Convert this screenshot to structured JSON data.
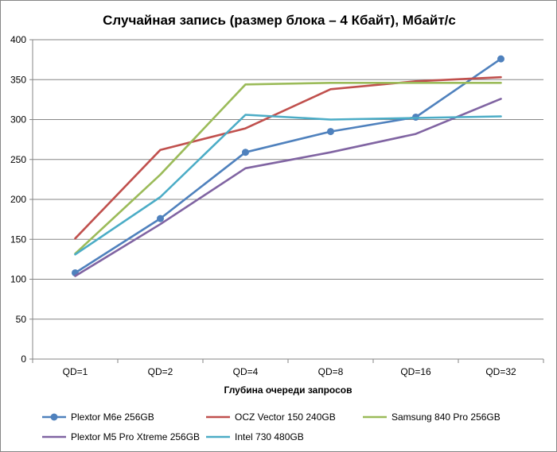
{
  "chart_data": {
    "type": "line",
    "title": "Случайная запись (размер блока – 4 Кбайт), Мбайт/с",
    "xlabel": "Глубина очереди запросов",
    "ylabel": "",
    "categories": [
      "QD=1",
      "QD=2",
      "QD=4",
      "QD=8",
      "QD=16",
      "QD=32"
    ],
    "ylim": [
      0,
      400
    ],
    "yticks": [
      0,
      50,
      100,
      150,
      200,
      250,
      300,
      350,
      400
    ],
    "grid": true,
    "legend_position": "bottom",
    "series": [
      {
        "name": "Plextor M6e 256GB",
        "color": "#4F81BD",
        "markers": true,
        "values": [
          108,
          176,
          259,
          285,
          303,
          376
        ]
      },
      {
        "name": "OCZ Vector 150 240GB",
        "color": "#C0504D",
        "markers": false,
        "values": [
          151,
          262,
          289,
          338,
          348,
          353
        ]
      },
      {
        "name": "Samsung 840 Pro 256GB",
        "color": "#9BBB59",
        "markers": false,
        "values": [
          132,
          231,
          344,
          346,
          346,
          346
        ]
      },
      {
        "name": "Plextor M5 Pro Xtreme 256GB",
        "color": "#8064A2",
        "markers": false,
        "values": [
          104,
          169,
          239,
          259,
          282,
          326
        ]
      },
      {
        "name": "Intel 730 480GB",
        "color": "#4BACC6",
        "markers": false,
        "values": [
          131,
          203,
          306,
          300,
          302,
          304
        ]
      }
    ]
  }
}
